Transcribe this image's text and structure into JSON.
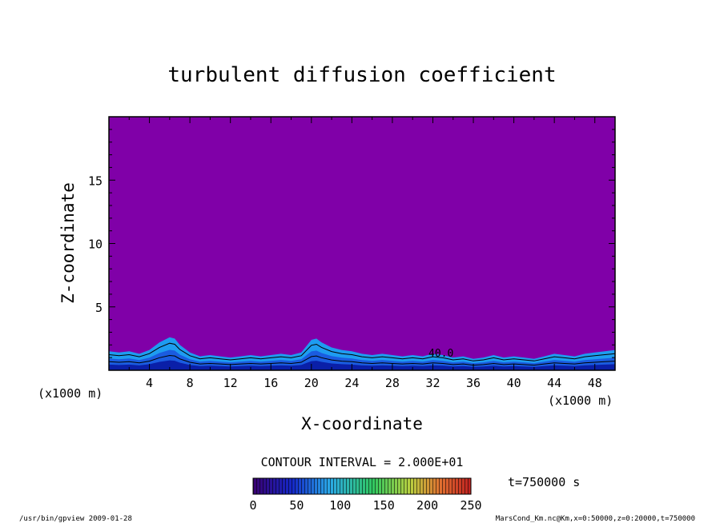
{
  "chart_data": {
    "type": "heatmap",
    "title": "turbulent diffusion coefficient",
    "xlabel": "X-coordinate",
    "ylabel": "Z-coordinate",
    "x_unit_left": "(x1000 m)",
    "x_unit_right": "(x1000 m)",
    "xlim": [
      0,
      50
    ],
    "ylim": [
      0,
      20
    ],
    "x_ticks": [
      "4",
      "8",
      "12",
      "16",
      "20",
      "24",
      "28",
      "32",
      "36",
      "40",
      "44",
      "48"
    ],
    "y_ticks": [
      "5",
      "10",
      "15"
    ],
    "x_tick_values": [
      4,
      8,
      12,
      16,
      20,
      24,
      28,
      32,
      36,
      40,
      44,
      48
    ],
    "y_tick_values": [
      5,
      10,
      15
    ],
    "contour_label": "40.0",
    "contour_interval": "CONTOUR INTERVAL = 2.000E+01",
    "time_label": "t=750000 s",
    "colorbar": {
      "min": 0,
      "max": 250,
      "ticks": [
        "0",
        "50",
        "100",
        "150",
        "200",
        "250"
      ],
      "tick_values": [
        0,
        50,
        100,
        150,
        200,
        250
      ]
    },
    "boundary_layer_top": {
      "x": [
        0,
        1,
        2,
        3,
        4,
        5,
        6,
        6.5,
        7,
        8,
        9,
        10,
        11,
        12,
        13,
        14,
        15,
        16,
        17,
        18,
        19,
        20,
        20.5,
        21,
        22,
        23,
        24,
        25,
        26,
        27,
        28,
        29,
        30,
        31,
        32,
        33,
        34,
        35,
        36,
        37,
        38,
        39,
        40,
        41,
        42,
        43,
        44,
        45,
        46,
        47,
        48,
        49,
        50
      ],
      "z": [
        1.5,
        1.4,
        1.5,
        1.3,
        1.6,
        2.2,
        2.6,
        2.5,
        2.0,
        1.4,
        1.1,
        1.2,
        1.1,
        1.0,
        1.1,
        1.2,
        1.1,
        1.2,
        1.3,
        1.2,
        1.4,
        2.4,
        2.5,
        2.2,
        1.8,
        1.6,
        1.5,
        1.3,
        1.2,
        1.3,
        1.2,
        1.1,
        1.2,
        1.1,
        1.3,
        1.2,
        1.0,
        1.1,
        0.9,
        1.0,
        1.2,
        1.0,
        1.1,
        1.0,
        0.9,
        1.1,
        1.3,
        1.2,
        1.1,
        1.3,
        1.4,
        1.5,
        1.6
      ]
    }
  },
  "footer": {
    "program": "/usr/bin/gpview   2009-01-28",
    "source": "MarsCond_Km.nc@Km,x=0:50000,z=0:20000,t=750000"
  },
  "colors": {
    "background_field": "#8000a8",
    "layer_light": "#1e9cf0",
    "layer_mid": "#1a5ce0",
    "layer_dark": "#0a1fa8"
  }
}
